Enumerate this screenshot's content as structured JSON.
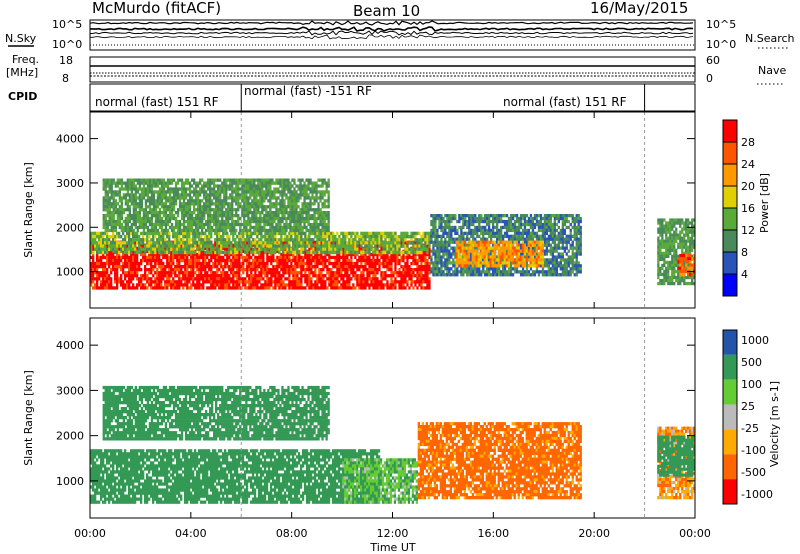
{
  "header": {
    "station": "McMurdo (fitACF)",
    "beam": "Beam 10",
    "date": "16/May/2015"
  },
  "noise_panel": {
    "left_label": "N.Sky",
    "right_label": "N.Search",
    "left_ticks": [
      "10^5",
      "10^0"
    ],
    "right_ticks": [
      "10^5",
      "10^0"
    ]
  },
  "freq_panel": {
    "left_label_1": "Freq.",
    "left_label_2": "[MHz]",
    "right_label": "Nave",
    "left_ticks": [
      "18",
      "8"
    ],
    "right_ticks": [
      "60",
      "0"
    ]
  },
  "cpid_panel": {
    "label": "CPID",
    "segments": [
      {
        "start_h": 0.0,
        "end_h": 6.0,
        "name": "normal (fast) 151 RF"
      },
      {
        "start_h": 6.0,
        "end_h": 22.0,
        "name": "normal (fast) -151 RF"
      },
      {
        "start_h": 22.0,
        "end_h": 24.0,
        "name": "normal (fast) 151 RF"
      }
    ],
    "label_texts": [
      "normal (fast) 151 RF",
      "normal (fast) -151 RF",
      "normal (fast) 151 RF"
    ]
  },
  "x_axis": {
    "label": "Time UT",
    "ticks": [
      "00:00",
      "04:00",
      "08:00",
      "12:00",
      "16:00",
      "20:00",
      "00:00"
    ],
    "range_hours": [
      0,
      24
    ]
  },
  "colors": {
    "power": [
      "#0000ff",
      "#2a55b8",
      "#4a8a5a",
      "#5aaa3a",
      "#e0d000",
      "#ff9900",
      "#ff5500",
      "#ff0000"
    ],
    "velocity": [
      "#ff0000",
      "#ff6600",
      "#ffaa00",
      "#bbbbbb",
      "#66cc33",
      "#339955",
      "#2255aa"
    ]
  },
  "chart_data": [
    {
      "type": "heatmap",
      "title": "",
      "xlabel": "Time UT",
      "ylabel": "Slant Range [km]",
      "x_range_hours": [
        0,
        24
      ],
      "ylim": [
        180,
        4600
      ],
      "y_ticks": [
        1000,
        2000,
        3000,
        4000
      ],
      "colorbar": {
        "label": "Power [dB]",
        "range": [
          0,
          32
        ],
        "ticks": [
          "4",
          "8",
          "12",
          "16",
          "20",
          "24",
          "28"
        ]
      },
      "blobs": [
        {
          "t0": 0.0,
          "t1": 13.5,
          "r0": 600,
          "r1": 1700,
          "value_db": 30
        },
        {
          "t0": 0.0,
          "t1": 13.5,
          "r0": 1400,
          "r1": 1900,
          "value_db": 14
        },
        {
          "t0": 0.5,
          "t1": 9.5,
          "r0": 1900,
          "r1": 3100,
          "value_db": 12
        },
        {
          "t0": 13.5,
          "t1": 19.5,
          "r0": 900,
          "r1": 2300,
          "value_db": 9
        },
        {
          "t0": 14.5,
          "t1": 18.0,
          "r0": 1100,
          "r1": 1700,
          "value_db": 22
        },
        {
          "t0": 22.5,
          "t1": 24.0,
          "r0": 700,
          "r1": 2200,
          "value_db": 12
        },
        {
          "t0": 23.3,
          "t1": 24.0,
          "r0": 900,
          "r1": 1400,
          "value_db": 26
        }
      ]
    },
    {
      "type": "heatmap",
      "title": "",
      "xlabel": "Time UT",
      "ylabel": "Slant Range [km]",
      "x_range_hours": [
        0,
        24
      ],
      "ylim": [
        180,
        4600
      ],
      "y_ticks": [
        1000,
        2000,
        3000,
        4000
      ],
      "colorbar": {
        "label": "Velocity [m s-1]",
        "ticks": [
          "1000",
          "500",
          "100",
          "25",
          "-25",
          "-100",
          "-500",
          "-1000"
        ]
      },
      "blobs": [
        {
          "t0": 0.0,
          "t1": 11.5,
          "r0": 500,
          "r1": 1700,
          "value_ms": 300
        },
        {
          "t0": 0.5,
          "t1": 9.5,
          "r0": 1900,
          "r1": 3100,
          "value_ms": 300
        },
        {
          "t0": 10.0,
          "t1": 13.0,
          "r0": 500,
          "r1": 1500,
          "value_ms": 80
        },
        {
          "t0": 13.0,
          "t1": 19.5,
          "r0": 600,
          "r1": 2300,
          "value_ms": -150
        },
        {
          "t0": 22.5,
          "t1": 24.0,
          "r0": 600,
          "r1": 2200,
          "value_ms": -80
        },
        {
          "t0": 22.5,
          "t1": 24.0,
          "r0": 1100,
          "r1": 2000,
          "value_ms": 300
        }
      ]
    }
  ]
}
